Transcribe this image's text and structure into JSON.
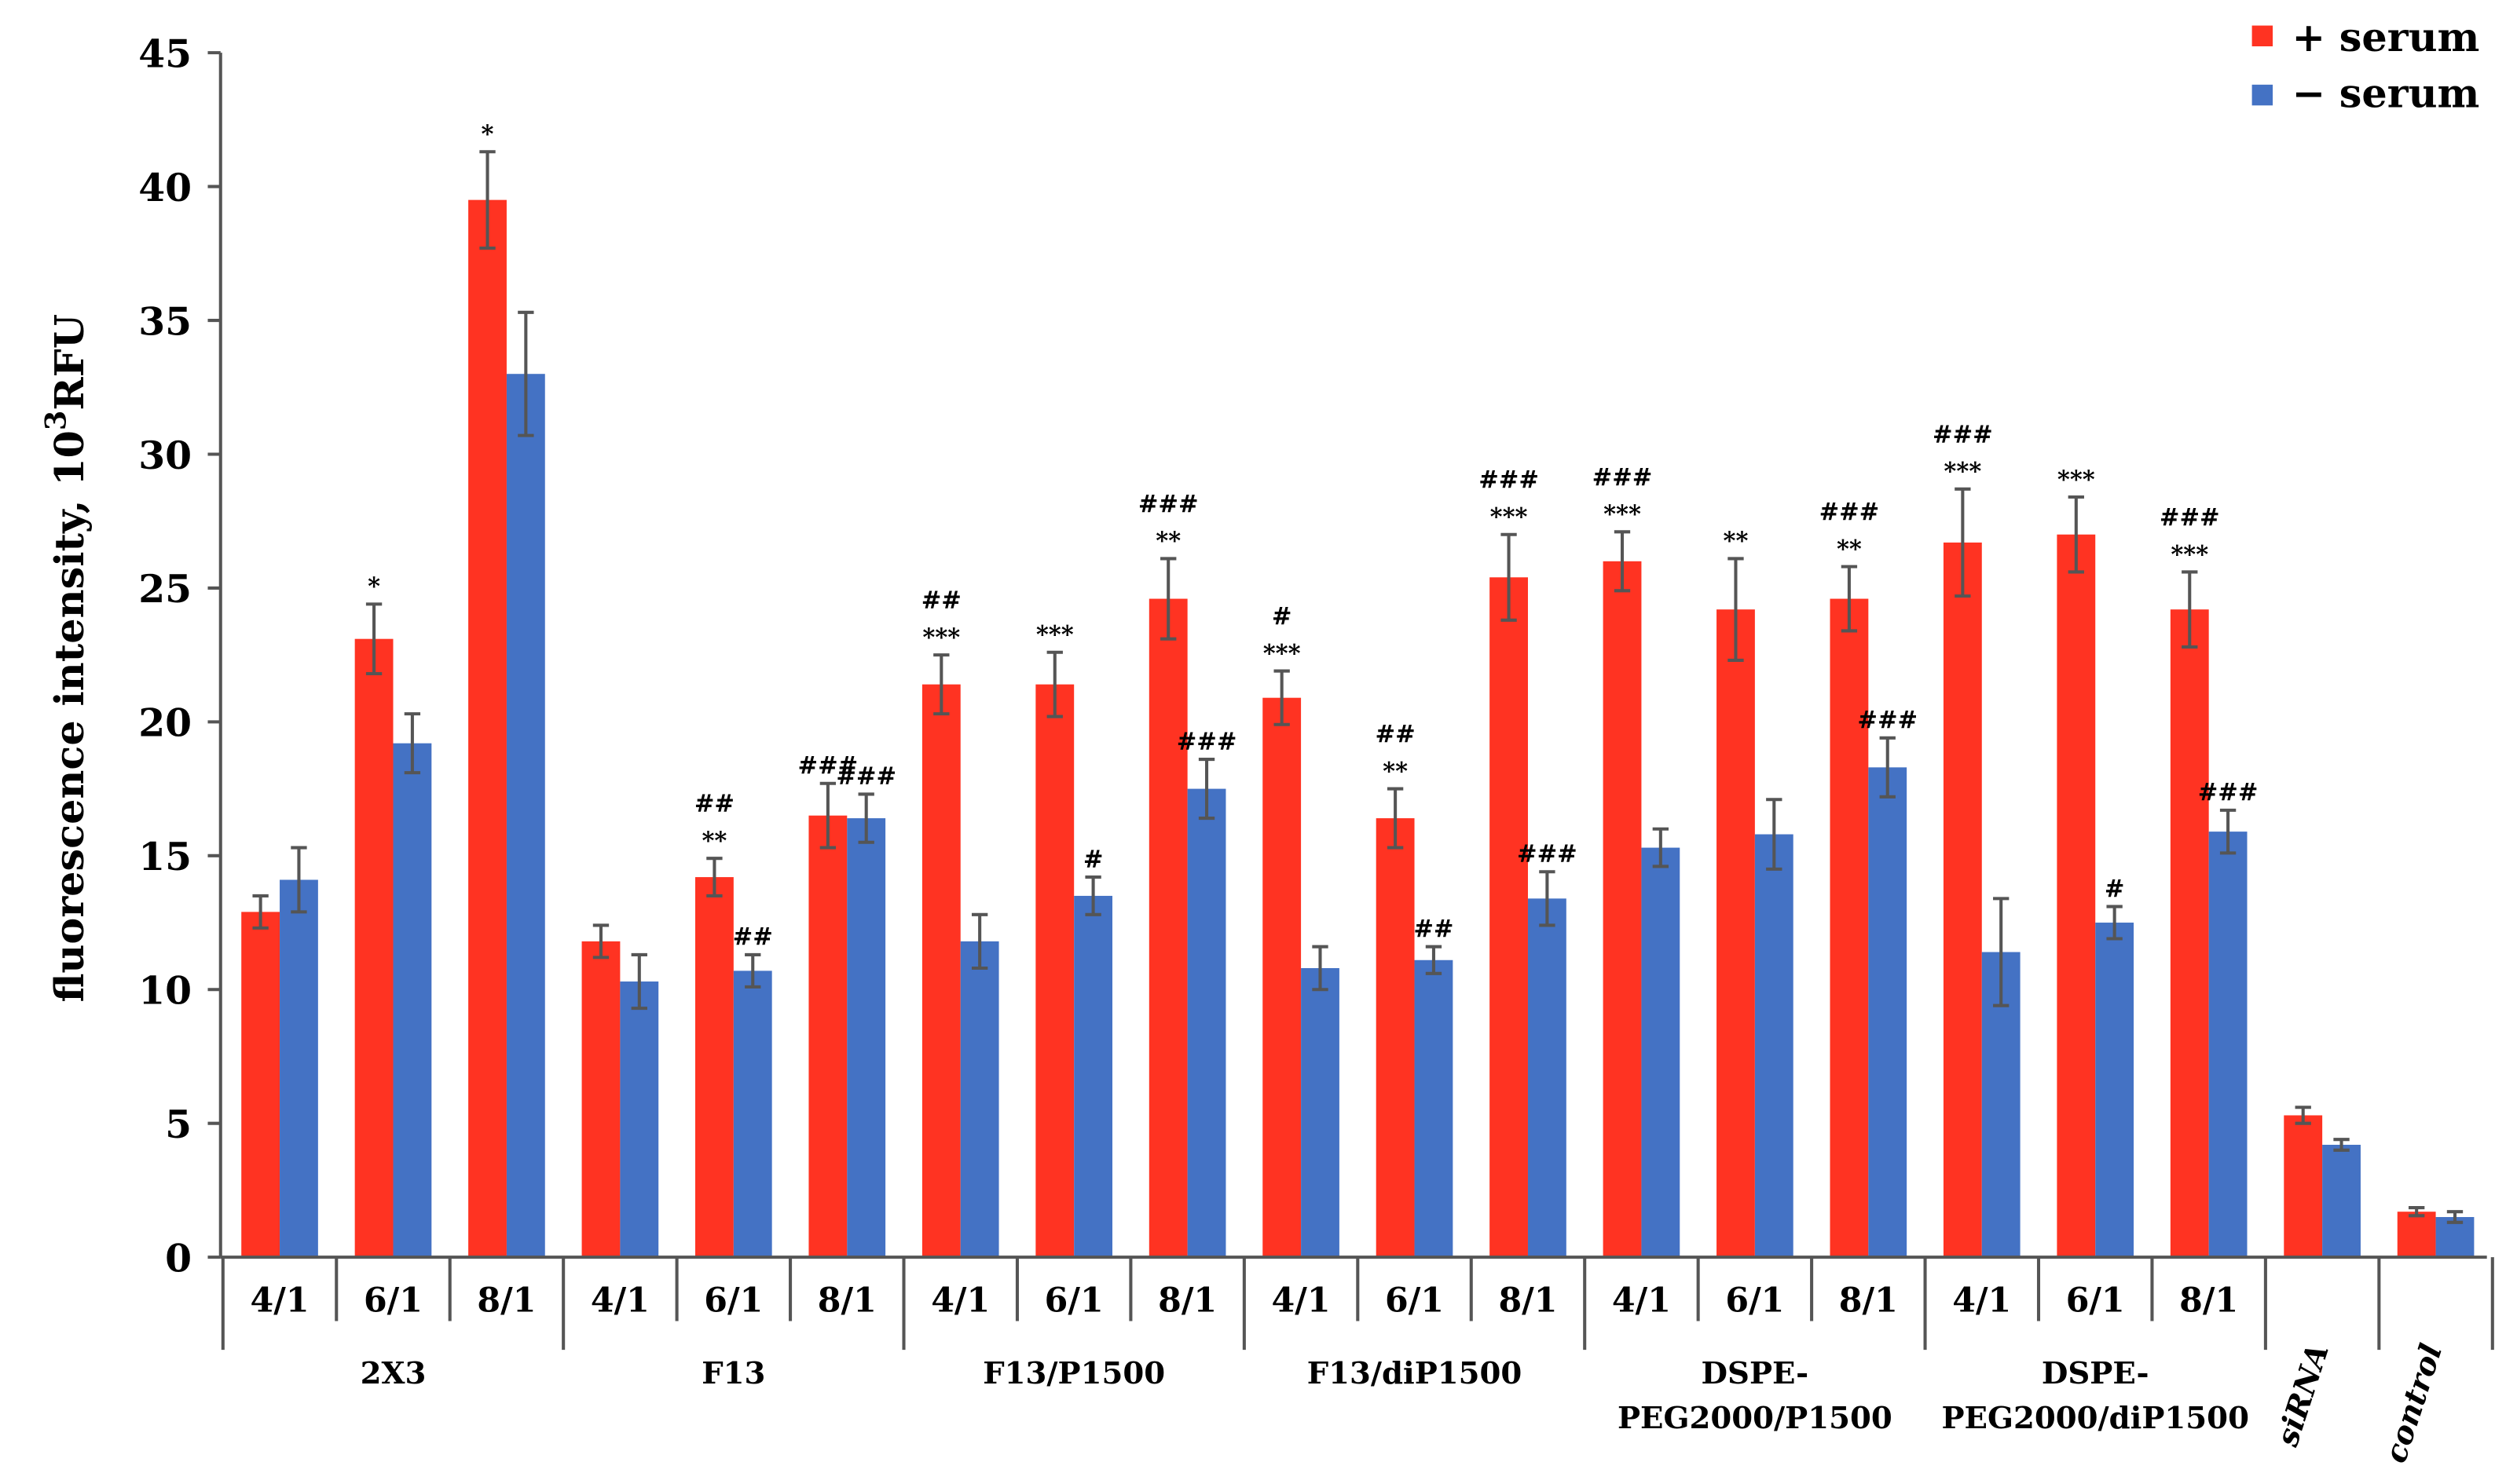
{
  "chart_data": {
    "type": "bar",
    "ylabel_main": "fluorescence intensity, 10",
    "ylabel_sup": "3",
    "ylabel_unit": "RFU",
    "ylim": [
      0,
      45
    ],
    "yticks": [
      0,
      5,
      10,
      15,
      20,
      25,
      30,
      35,
      40,
      45
    ],
    "colors": {
      "plus": "#ff3322",
      "minus": "#4472c4",
      "error": "#555555"
    },
    "legend": {
      "position": "top-right",
      "labels": [
        "+ serum",
        "− serum"
      ]
    },
    "groups": [
      {
        "lines": [
          "2X3"
        ],
        "italic": false,
        "ticks": [
          "4/1",
          "6/1",
          "8/1"
        ]
      },
      {
        "lines": [
          "F13"
        ],
        "italic": false,
        "ticks": [
          "4/1",
          "6/1",
          "8/1"
        ]
      },
      {
        "lines": [
          "F13/P1500"
        ],
        "italic": false,
        "ticks": [
          "4/1",
          "6/1",
          "8/1"
        ]
      },
      {
        "lines": [
          "F13/diP1500"
        ],
        "italic": false,
        "ticks": [
          "4/1",
          "6/1",
          "8/1"
        ]
      },
      {
        "lines": [
          "DSPE-",
          "PEG2000/P1500"
        ],
        "italic": false,
        "ticks": [
          "4/1",
          "6/1",
          "8/1"
        ]
      },
      {
        "lines": [
          "DSPE-",
          "PEG2000/diP1500"
        ],
        "italic": false,
        "ticks": [
          "4/1",
          "6/1",
          "8/1"
        ]
      },
      {
        "lines": [
          "siRNA"
        ],
        "italic": true,
        "ticks": []
      },
      {
        "lines": [
          "control"
        ],
        "italic": true,
        "ticks": []
      }
    ],
    "series": [
      {
        "name": "+ serum",
        "values": [
          12.9,
          23.1,
          39.5,
          11.8,
          14.2,
          16.5,
          21.4,
          21.4,
          24.6,
          20.9,
          16.4,
          25.4,
          26.0,
          24.2,
          24.6,
          26.7,
          27.0,
          24.2,
          5.3,
          1.7
        ],
        "errors": [
          0.6,
          1.3,
          1.8,
          0.6,
          0.7,
          1.2,
          1.1,
          1.2,
          1.5,
          1.0,
          1.1,
          1.6,
          1.1,
          1.9,
          1.2,
          2.0,
          1.4,
          1.4,
          0.3,
          0.15
        ],
        "annotations": [
          [],
          [
            "*"
          ],
          [
            "*"
          ],
          [],
          [
            "##",
            "**"
          ],
          [
            "###"
          ],
          [
            "##",
            "***"
          ],
          [
            "***"
          ],
          [
            "###",
            "**"
          ],
          [
            "#",
            "***"
          ],
          [
            "##",
            "**"
          ],
          [
            "###",
            "***"
          ],
          [
            "###",
            "***"
          ],
          [
            "**"
          ],
          [
            "###",
            "**"
          ],
          [
            "###",
            "***"
          ],
          [
            "***"
          ],
          [
            "###",
            "***"
          ],
          [],
          []
        ]
      },
      {
        "name": "− serum",
        "values": [
          14.1,
          19.2,
          33.0,
          10.3,
          10.7,
          16.4,
          11.8,
          13.5,
          17.5,
          10.8,
          11.1,
          13.4,
          15.3,
          15.8,
          18.3,
          11.4,
          12.5,
          15.9,
          4.2,
          1.5
        ],
        "errors": [
          1.2,
          1.1,
          2.3,
          1.0,
          0.6,
          0.9,
          1.0,
          0.7,
          1.1,
          0.8,
          0.5,
          1.0,
          0.7,
          1.3,
          1.1,
          2.0,
          0.6,
          0.8,
          0.2,
          0.2
        ],
        "annotations": [
          [],
          [],
          [],
          [],
          [
            "##"
          ],
          [
            "###"
          ],
          [],
          [
            "#"
          ],
          [
            "###"
          ],
          [],
          [
            "##"
          ],
          [
            "###"
          ],
          [],
          [],
          [
            "###"
          ],
          [],
          [
            "#"
          ],
          [
            "###"
          ],
          [],
          []
        ]
      }
    ]
  }
}
